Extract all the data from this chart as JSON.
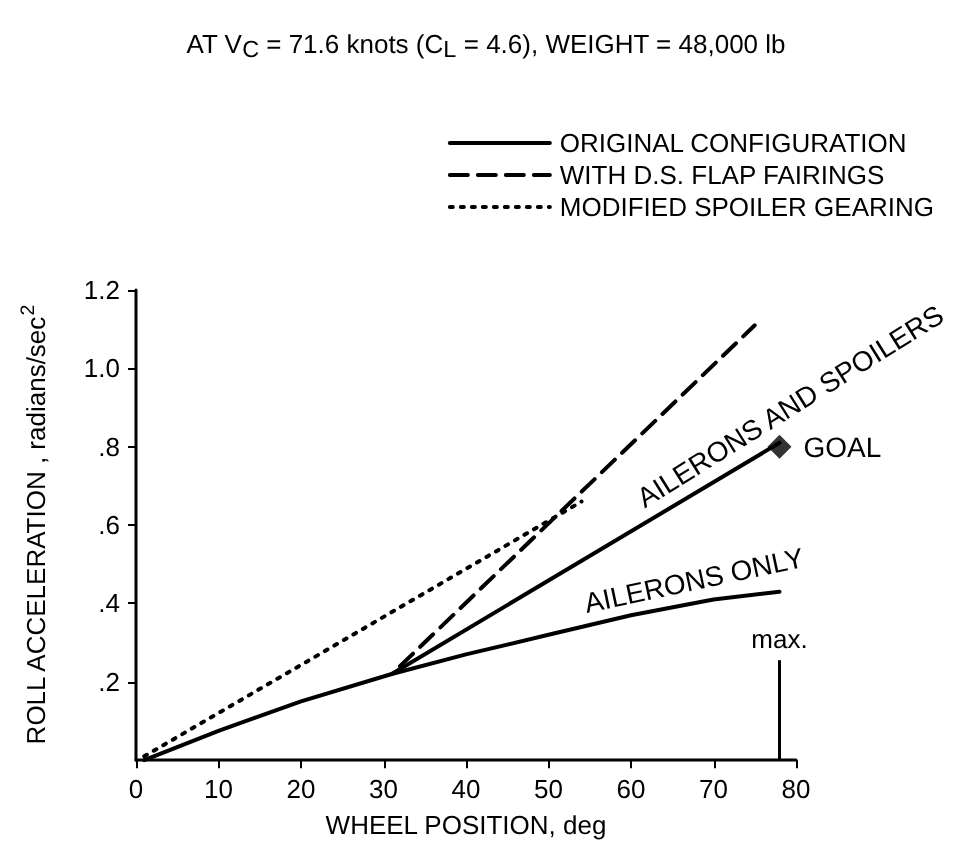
{
  "chart_data": {
    "type": "line",
    "title": "AT V$_{C}$ = 71.6 knots (C$_{L}$ = 4.6), WEIGHT = 48,000 lb",
    "xlabel": "WHEEL POSITION, deg",
    "ylabel": "ROLL ACCELERATION , radians/sec$^{2}$",
    "xlim": [
      0,
      80
    ],
    "xticks": [
      0,
      10,
      20,
      30,
      40,
      50,
      60,
      70,
      80
    ],
    "ylim": [
      0,
      1.2
    ],
    "yticks": [
      {
        "value": 0.2,
        "label": ".2"
      },
      {
        "value": 0.4,
        "label": ".4"
      },
      {
        "value": 0.6,
        "label": ".6"
      },
      {
        "value": 0.8,
        "label": ".8"
      },
      {
        "value": 1.0,
        "label": "1.0"
      },
      {
        "value": 1.2,
        "label": "1.2"
      }
    ],
    "grid": false,
    "legend": "top right",
    "marker": "none",
    "series": [
      {
        "name": "ORIGINAL CONFIGURATION",
        "color": "#000000",
        "line_style": "solid",
        "x": [
          1,
          10,
          20,
          31,
          40,
          50,
          60,
          70,
          78
        ],
        "values": [
          0,
          0.075,
          0.15,
          0.22,
          0.27,
          0.32,
          0.37,
          0.41,
          0.43
        ]
      },
      {
        "color": "#000000",
        "line_style": "solid",
        "x": [
          31,
          78
        ],
        "values": [
          0.22,
          0.81
        ]
      },
      {
        "name": "WITH D.S. FLAP FAIRINGS",
        "color": "#000000",
        "line_style": "dashed",
        "x": [
          32,
          75
        ],
        "values": [
          0.24,
          1.11
        ]
      },
      {
        "name": "MODIFIED SPOILER GEARING",
        "color": "#000000",
        "line_style": "dotted",
        "x": [
          1,
          54
        ],
        "values": [
          0.01,
          0.66
        ]
      },
      {
        "type": "scatter",
        "marker": "diamond",
        "color": "#000000",
        "x": [
          78
        ],
        "values": [
          0.8
        ]
      }
    ],
    "ref_lines": [
      {
        "axis": "x",
        "value": 78,
        "label": "max."
      }
    ],
    "annotations": [
      "AILERONS AND SPOILERS",
      "AILERONS ONLY",
      {
        "text": "GOAL",
        "x": 78,
        "y": 0.8
      }
    ]
  }
}
